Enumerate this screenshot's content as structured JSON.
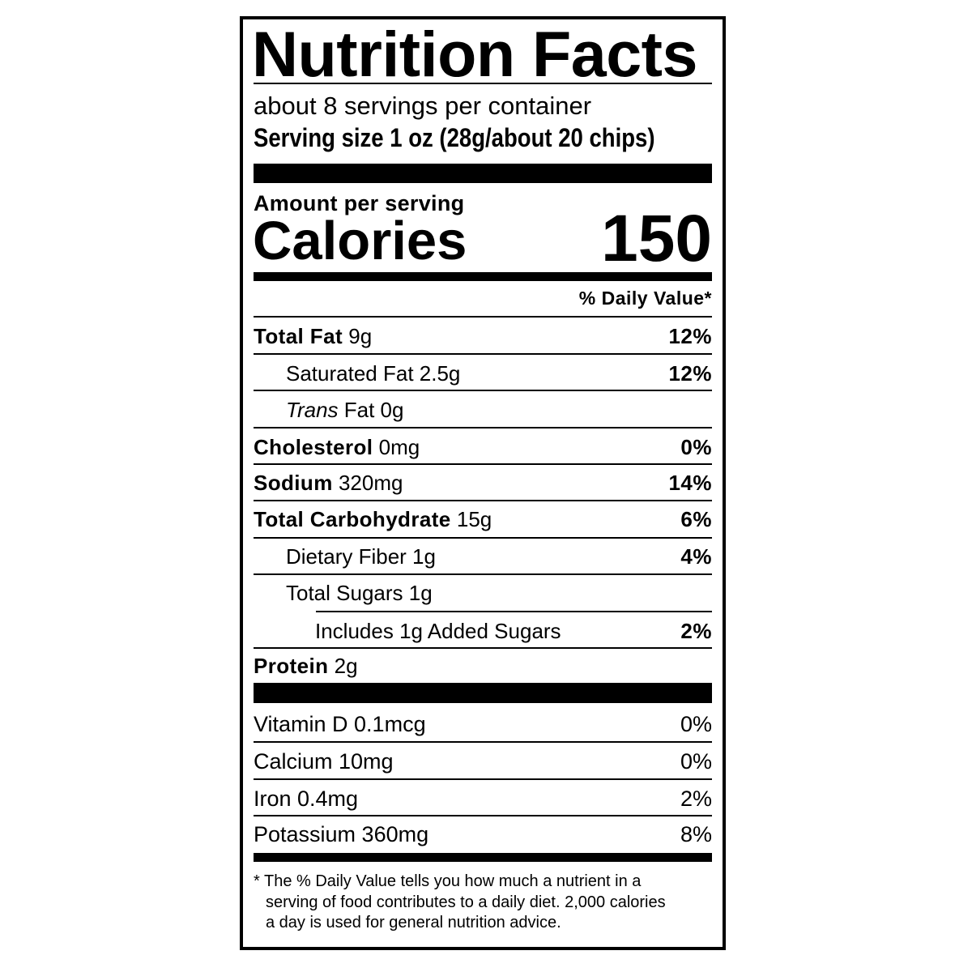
{
  "title": "Nutrition Facts",
  "servings_per_container": "about 8 servings per container",
  "serving_size": "Serving size 1 oz (28g/about 20 chips)",
  "amount_per_serving": "Amount per serving",
  "calories_label": "Calories",
  "calories_value": "150",
  "daily_value_header": "% Daily Value*",
  "nutrients": [
    {
      "name": "Total Fat",
      "amount": "9g",
      "dv": "12%"
    },
    {
      "name": "Saturated Fat 2.5g",
      "dv": "12%"
    },
    {
      "name_italic": "Trans",
      "name": "Fat 0g"
    },
    {
      "name": "Cholesterol",
      "amount": "0mg",
      "dv": "0%"
    },
    {
      "name": "Sodium",
      "amount": "320mg",
      "dv": "14%"
    },
    {
      "name": "Total Carbohydrate",
      "amount": "15g",
      "dv": "6%"
    },
    {
      "name": "Dietary Fiber 1g",
      "dv": "4%"
    },
    {
      "name": "Total Sugars 1g"
    },
    {
      "name": "Includes 1g Added Sugars",
      "dv": "2%"
    },
    {
      "name": "Protein",
      "amount": "2g"
    }
  ],
  "vitamins": [
    {
      "name": "Vitamin D 0.1mcg",
      "dv": "0%"
    },
    {
      "name": "Calcium 10mg",
      "dv": "0%"
    },
    {
      "name": "Iron 0.4mg",
      "dv": "2%"
    },
    {
      "name": "Potassium 360mg",
      "dv": "8%"
    }
  ],
  "footnote": [
    "* The % Daily Value tells you how much a nutrient in a",
    "serving of food contributes to a daily diet. 2,000 calories",
    "a day is used for general nutrition advice."
  ]
}
